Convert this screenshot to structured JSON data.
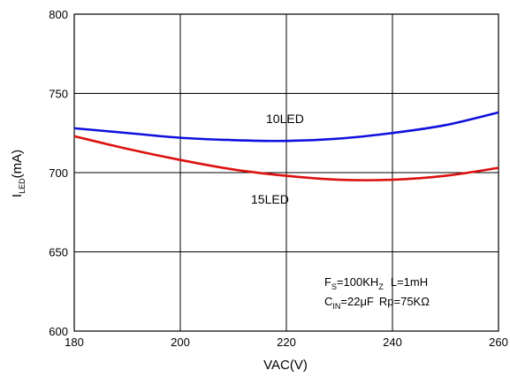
{
  "chart_data": {
    "type": "line",
    "title": "",
    "xlabel": "VAC(V)",
    "ylabel": {
      "main": "I",
      "sub": "LED",
      "unit": "(mA)"
    },
    "xlim": [
      180,
      260
    ],
    "ylim": [
      600,
      800
    ],
    "x_ticks": [
      "180",
      "200",
      "220",
      "240",
      "260"
    ],
    "y_ticks": [
      "600",
      "650",
      "700",
      "750",
      "800"
    ],
    "grid": true,
    "series": [
      {
        "name": "10LED",
        "color": "#1010dd",
        "points": [
          [
            180,
            728
          ],
          [
            190,
            725
          ],
          [
            200,
            722
          ],
          [
            210,
            720.5
          ],
          [
            220,
            720
          ],
          [
            230,
            721.5
          ],
          [
            240,
            725
          ],
          [
            250,
            730
          ],
          [
            260,
            738
          ]
        ]
      },
      {
        "name": "15LED",
        "color": "#dd1010",
        "points": [
          [
            180,
            723
          ],
          [
            190,
            715
          ],
          [
            200,
            708
          ],
          [
            210,
            702
          ],
          [
            220,
            698
          ],
          [
            230,
            695.5
          ],
          [
            240,
            695.5
          ],
          [
            250,
            698
          ],
          [
            260,
            703
          ]
        ]
      }
    ],
    "annotation": {
      "line1": {
        "fs": "F",
        "fs_sub": "S",
        "fs_val": "=100KH",
        "hz_sub": "Z",
        "l": "L=1mH"
      },
      "line2": {
        "c": "C",
        "c_sub": "IN",
        "c_val": "=22μF",
        "rp": "Rp=75KΩ"
      }
    }
  }
}
